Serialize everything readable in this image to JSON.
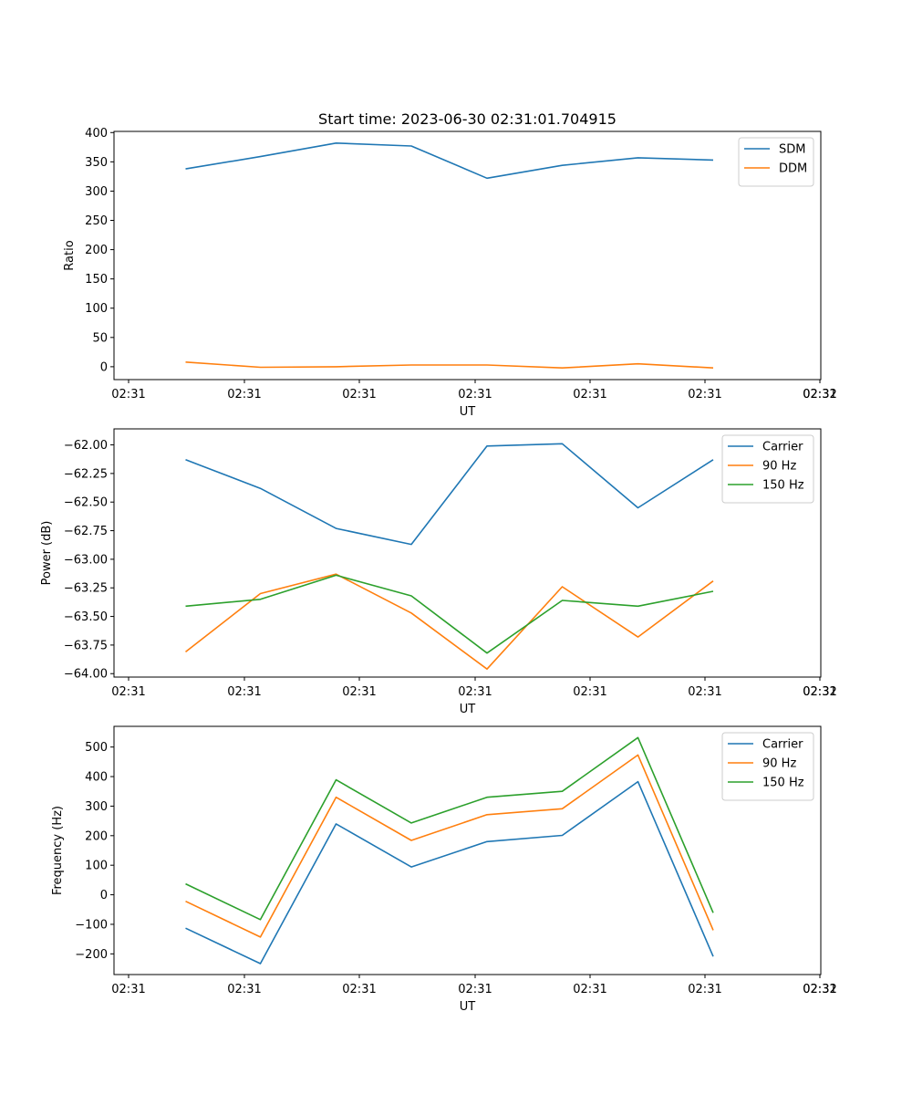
{
  "title": "Start time: 2023-06-30 02:31:01.704915",
  "colors": {
    "blue": "#1f77b4",
    "orange": "#ff7f0e",
    "green": "#2ca02c"
  },
  "chart_data": [
    {
      "type": "line",
      "title": "Start time: 2023-06-30 02:31:01.704915",
      "xlabel": "UT",
      "ylabel": "Ratio",
      "x_tick_labels": [
        "02:31",
        "02:31",
        "02:31",
        "02:31",
        "02:31",
        "02:31",
        "02:31"
      ],
      "x_tick_labels_last": "02:32",
      "ylim": [
        -22,
        402
      ],
      "y_ticks": [
        0,
        50,
        100,
        150,
        200,
        250,
        300,
        350,
        400
      ],
      "y_tick_labels": [
        "0",
        "50",
        "100",
        "150",
        "200",
        "250",
        "300",
        "350",
        "400"
      ],
      "legend": "upper right",
      "series": [
        {
          "name": "SDM",
          "color": "#1f77b4",
          "values": [
            338,
            359,
            382,
            377,
            322,
            344,
            357,
            353
          ]
        },
        {
          "name": "DDM",
          "color": "#ff7f0e",
          "values": [
            8,
            -1,
            0,
            3,
            3,
            -2,
            5,
            -2
          ]
        }
      ]
    },
    {
      "type": "line",
      "xlabel": "UT",
      "ylabel": "Power (dB)",
      "x_tick_labels": [
        "02:31",
        "02:31",
        "02:31",
        "02:31",
        "02:31",
        "02:31",
        "02:31"
      ],
      "x_tick_labels_last": "02:32",
      "ylim": [
        -64.03,
        -61.86
      ],
      "y_ticks": [
        -64.0,
        -63.75,
        -63.5,
        -63.25,
        -63.0,
        -62.75,
        -62.5,
        -62.25,
        -62.0
      ],
      "y_tick_labels": [
        "−64.00",
        "−63.75",
        "−63.50",
        "−63.25",
        "−63.00",
        "−62.75",
        "−62.50",
        "−62.25",
        "−62.00"
      ],
      "legend": "upper right",
      "series": [
        {
          "name": "Carrier",
          "color": "#1f77b4",
          "values": [
            -62.13,
            -62.38,
            -62.73,
            -62.87,
            -62.01,
            -61.99,
            -62.55,
            -62.13
          ]
        },
        {
          "name": "90 Hz",
          "color": "#ff7f0e",
          "values": [
            -63.81,
            -63.3,
            -63.13,
            -63.47,
            -63.96,
            -63.24,
            -63.68,
            -63.19
          ]
        },
        {
          "name": "150 Hz",
          "color": "#2ca02c",
          "values": [
            -63.41,
            -63.35,
            -63.14,
            -63.32,
            -63.82,
            -63.36,
            -63.41,
            -63.28
          ]
        }
      ]
    },
    {
      "type": "line",
      "xlabel": "UT",
      "ylabel": "Frequency (Hz)",
      "x_tick_labels": [
        "02:31",
        "02:31",
        "02:31",
        "02:31",
        "02:31",
        "02:31",
        "02:31"
      ],
      "x_tick_labels_last": "02:32",
      "ylim": [
        -270,
        570
      ],
      "y_ticks": [
        -200,
        -100,
        0,
        100,
        200,
        300,
        400,
        500
      ],
      "y_tick_labels": [
        "−200",
        "−100",
        "0",
        "100",
        "200",
        "300",
        "400",
        "500"
      ],
      "legend": "upper right",
      "series": [
        {
          "name": "Carrier",
          "color": "#1f77b4",
          "values": [
            -113,
            -233,
            240,
            94,
            180,
            201,
            383,
            -209
          ]
        },
        {
          "name": "90 Hz",
          "color": "#ff7f0e",
          "values": [
            -22,
            -143,
            330,
            184,
            271,
            291,
            473,
            -120
          ]
        },
        {
          "name": "150 Hz",
          "color": "#2ca02c",
          "values": [
            37,
            -84,
            389,
            243,
            330,
            350,
            532,
            -61
          ]
        }
      ]
    }
  ]
}
